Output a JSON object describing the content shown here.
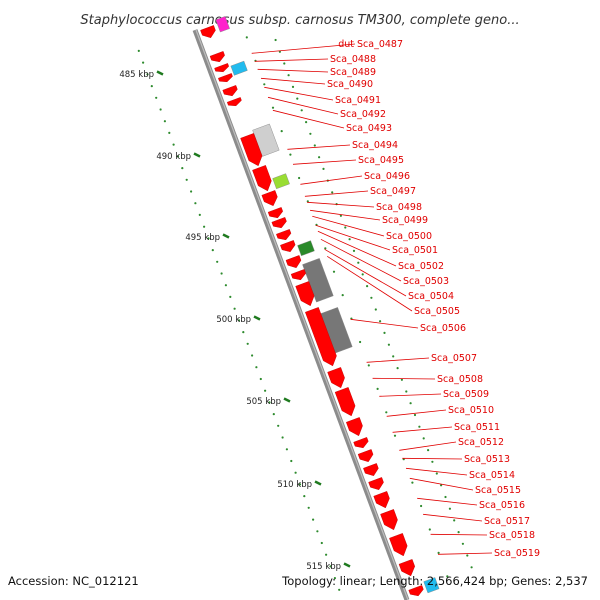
{
  "title": "Staphylococcus carnosus subsp. carnosus TM300, complete geno...",
  "accession": "Accession: NC_012121",
  "summary": "Topology: linear; Length: 2,566,424 bp; Genes: 2,537",
  "kbp_labels": [
    "485 kbp",
    "490 kbp",
    "495 kbp",
    "500 kbp",
    "505 kbp",
    "510 kbp",
    "515 kbp"
  ],
  "gene_labels": [
    "dut",
    "Sca_0487",
    "Sca_0488",
    "Sca_0489",
    "Sca_0490",
    "Sca_0491",
    "Sca_0492",
    "Sca_0493",
    "Sca_0494",
    "Sca_0495",
    "Sca_0496",
    "Sca_0497",
    "Sca_0498",
    "Sca_0499",
    "Sca_0500",
    "Sca_0501",
    "Sca_0502",
    "Sca_0503",
    "Sca_0504",
    "Sca_0505",
    "Sca_0506",
    "Sca_0507",
    "Sca_0508",
    "Sca_0509",
    "Sca_0510",
    "Sca_0511",
    "Sca_0512",
    "Sca_0513",
    "Sca_0514",
    "Sca_0515",
    "Sca_0516",
    "Sca_0517",
    "Sca_0518",
    "Sca_0519"
  ],
  "colors": {
    "gene": "#ff0000",
    "label": "#e00000",
    "leader": "#e00000",
    "backbone": "#8c8c8c",
    "dots": "#2e8b2e",
    "ticks": "#1f7a1f",
    "feature_magenta": "#ff22cc",
    "feature_cyan": "#22bbee",
    "feature_lightgray": "#cfcfcf",
    "feature_lime": "#99dd33",
    "feature_green": "#2a8a2a",
    "feature_darkgray": "#777777"
  }
}
